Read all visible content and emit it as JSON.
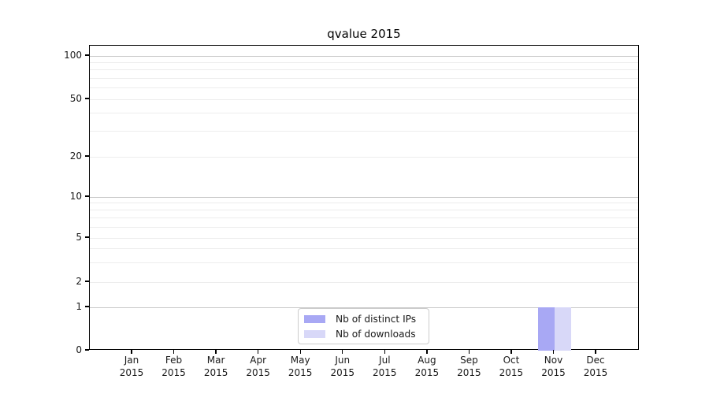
{
  "chart_data": {
    "type": "bar",
    "title": "qvalue 2015",
    "categories": [
      "Jan 2015",
      "Feb 2015",
      "Mar 2015",
      "Apr 2015",
      "May 2015",
      "Jun 2015",
      "Jul 2015",
      "Aug 2015",
      "Sep 2015",
      "Oct 2015",
      "Nov 2015",
      "Dec 2015"
    ],
    "series": [
      {
        "name": "Nb of distinct IPs",
        "color": "#a8a8f4",
        "values": [
          0,
          0,
          0,
          0,
          0,
          0,
          0,
          0,
          0,
          0,
          1,
          0
        ]
      },
      {
        "name": "Nb of downloads",
        "color": "#d8d8f8",
        "values": [
          0,
          0,
          0,
          0,
          0,
          0,
          0,
          0,
          0,
          0,
          1,
          0
        ]
      }
    ],
    "xlabel": "",
    "ylabel": "",
    "y_scale": "symlog",
    "y_ticks": [
      0,
      1,
      2,
      5,
      10,
      20,
      50,
      100
    ],
    "y_minor_ticks": [
      3,
      4,
      6,
      7,
      8,
      9,
      30,
      40,
      60,
      70,
      80,
      90
    ],
    "ylim": [
      0,
      120
    ],
    "grid": true,
    "legend": {
      "position": "lower center",
      "entries": [
        "Nb of distinct IPs",
        "Nb of downloads"
      ]
    },
    "colors": {
      "grid_major": "#c8c8c8",
      "grid_minor": "#ededed",
      "axis": "#000000",
      "text": "#1a1a1a"
    }
  }
}
